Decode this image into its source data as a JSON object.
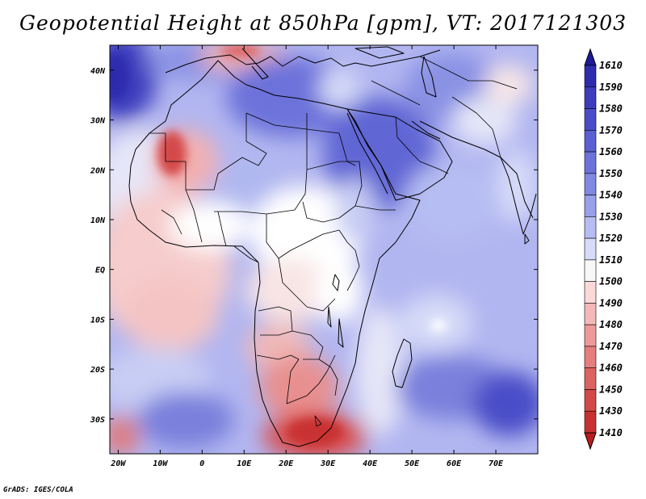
{
  "title": "Geopotential Height at 850hPa [gpm], VT: 2017121303",
  "credit": "GrADS: IGES/COLA",
  "lat_labels": [
    "40N",
    "30N",
    "20N",
    "10N",
    "EQ",
    "10S",
    "20S",
    "30S"
  ],
  "lon_labels": [
    "20W",
    "10W",
    "0",
    "10E",
    "20E",
    "30E",
    "40E",
    "50E",
    "60E",
    "70E"
  ],
  "colorbar_labels": [
    "1610",
    "1590",
    "1580",
    "1570",
    "1560",
    "1550",
    "1540",
    "1530",
    "1520",
    "1510",
    "1500",
    "1490",
    "1480",
    "1470",
    "1460",
    "1450",
    "1430",
    "1410"
  ],
  "colorbar_colors": [
    "#1e1a99",
    "#2e2cad",
    "#3c3cbd",
    "#4a4dc8",
    "#5a5fd2",
    "#6c72da",
    "#8088e2",
    "#98a0ea",
    "#b6bdf2",
    "#d6dbf8",
    "#f7f7f7",
    "#fbd9d9",
    "#f5b8b8",
    "#ee9a9a",
    "#e67e7e",
    "#dd6363",
    "#d44848",
    "#c93030",
    "#b81c1c"
  ],
  "chart_data": {
    "type": "heatmap",
    "variable": "Geopotential Height at 850hPa",
    "units": "gpm",
    "valid_time": "2017121303",
    "lon_range": [
      -22,
      80
    ],
    "lat_range": [
      -37,
      45
    ],
    "colorbar_levels": [
      1410,
      1430,
      1450,
      1460,
      1470,
      1480,
      1490,
      1500,
      1510,
      1520,
      1530,
      1540,
      1550,
      1560,
      1570,
      1580,
      1590,
      1610
    ]
  }
}
